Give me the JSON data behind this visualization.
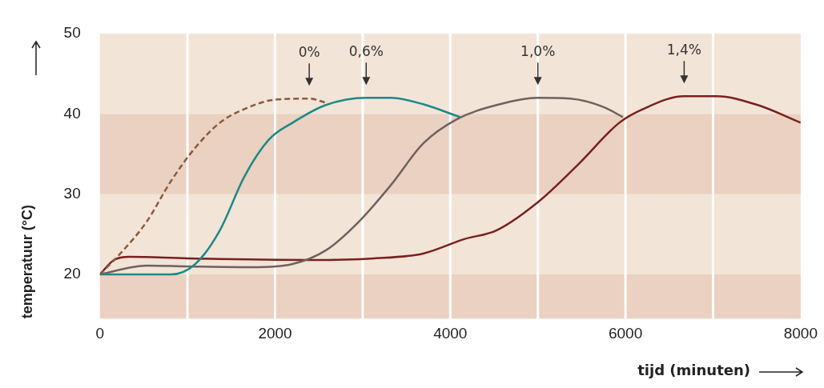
{
  "chart_data": {
    "type": "line",
    "xlabel": "tijd (minuten)",
    "ylabel": "temperatuur (°C)",
    "xlim": [
      0,
      8000
    ],
    "ylim": [
      14.5,
      50
    ],
    "xticks": [
      0,
      {
        "value": 1000,
        "label": null
      },
      2000,
      {
        "value": 3000,
        "label": null
      },
      4000,
      {
        "value": 5000,
        "label": null
      },
      6000,
      {
        "value": 7000,
        "label": null
      },
      8000
    ],
    "yticks": [
      20,
      30,
      40,
      50
    ],
    "grid": "x",
    "marker": "none",
    "bands": [
      {
        "axis": "y",
        "from": 14.5,
        "to": 20,
        "color": "#ead1c1"
      },
      {
        "axis": "y",
        "from": 20,
        "to": 30,
        "color": "#f3e4d8"
      },
      {
        "axis": "y",
        "from": 30,
        "to": 40,
        "color": "#ead1c1"
      },
      {
        "axis": "y",
        "from": 40,
        "to": 50,
        "color": "#f3e4d8"
      }
    ],
    "annotations": [
      "0%",
      "0,6%",
      "1,0%",
      "1,4%"
    ],
    "series": [
      {
        "color": "#8b5a3c",
        "line_style": "dashed",
        "x": [
          0,
          250,
          530,
          810,
          1090,
          1370,
          1650,
          2020,
          2390,
          2580
        ],
        "values": [
          20,
          22.8,
          26.5,
          31.6,
          35.8,
          38.9,
          40.6,
          41.8,
          41.9,
          41.4
        ]
      },
      {
        "color": "#1a8a8a",
        "x": [
          0,
          810,
          1090,
          1370,
          1650,
          1930,
          2200,
          2580,
          3040,
          3320,
          3690,
          4110
        ],
        "values": [
          20,
          20,
          21.3,
          25.5,
          32.2,
          36.8,
          38.9,
          41.1,
          42,
          42,
          41.2,
          39.6
        ]
      },
      {
        "color": "#6e625e",
        "x": [
          0,
          530,
          1000,
          1740,
          2200,
          2580,
          2950,
          3320,
          3690,
          4070,
          4530,
          5000,
          5370,
          5740,
          5970
        ],
        "values": [
          20,
          21.1,
          21,
          20.9,
          21.3,
          23,
          26.5,
          31.1,
          36.3,
          39.3,
          41.1,
          42,
          41.9,
          40.9,
          39.6
        ]
      },
      {
        "color": "#7a1f1f",
        "x": [
          0,
          160,
          340,
          1000,
          2390,
          3130,
          3690,
          4160,
          4530,
          5000,
          5460,
          5930,
          6200,
          6670,
          7040,
          7510,
          8000
        ],
        "values": [
          20,
          21.8,
          22.2,
          22,
          21.8,
          22,
          22.6,
          24.4,
          25.5,
          29,
          33.7,
          38.9,
          40.6,
          42.2,
          42.2,
          41.1,
          38.9
        ]
      }
    ]
  }
}
